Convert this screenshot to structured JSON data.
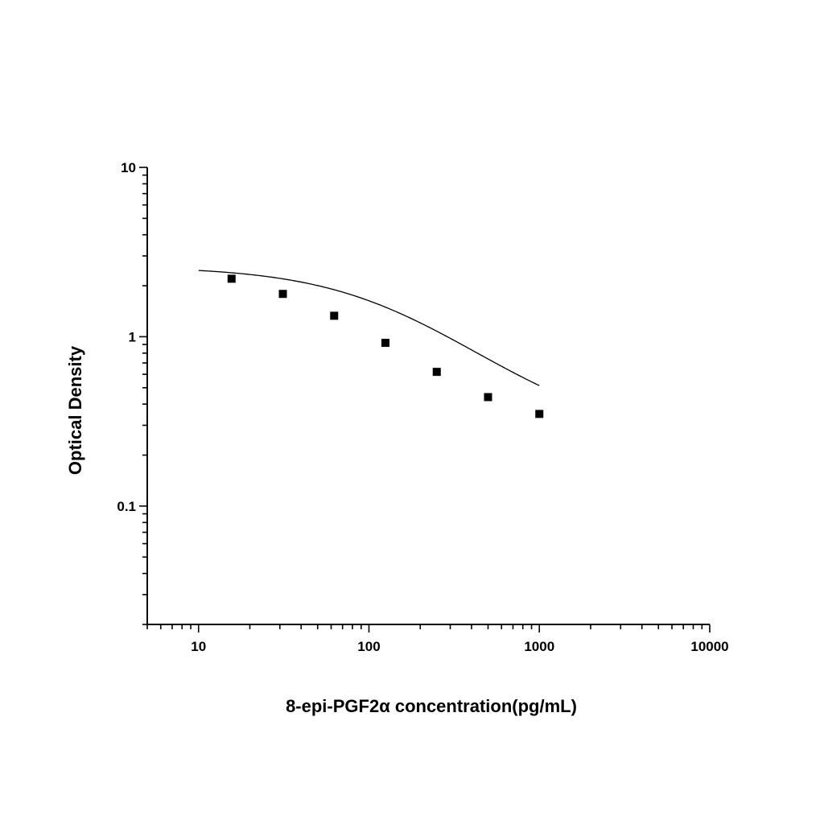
{
  "chart_data": {
    "type": "scatter",
    "title": "",
    "xlabel": "8-epi-PGF2α  concentration(pg/mL)",
    "ylabel": "Optical Density",
    "xscale": "log",
    "yscale": "log",
    "xlim": [
      5,
      10000
    ],
    "ylim": [
      0.02,
      10
    ],
    "x_ticks": [
      10,
      100,
      1000,
      10000
    ],
    "x_tick_labels": [
      "10",
      "100",
      "1000",
      "10000"
    ],
    "y_ticks": [
      0.1,
      1,
      10
    ],
    "y_tick_labels": [
      "0.1",
      "1",
      "10"
    ],
    "grid": false,
    "legend": "none",
    "series": [
      {
        "x": [
          15.625,
          31.25,
          62.5,
          125,
          250,
          500,
          1000
        ],
        "y": [
          2.2,
          1.79,
          1.33,
          0.92,
          0.62,
          0.44,
          0.35
        ],
        "marker": "square",
        "color": "#000000"
      }
    ],
    "fit_curve": {
      "type": "4PL",
      "A": 2.6,
      "D": 0.25,
      "C": 140,
      "B": 1.05,
      "x_range": [
        10,
        1000
      ],
      "color": "#000000"
    }
  }
}
